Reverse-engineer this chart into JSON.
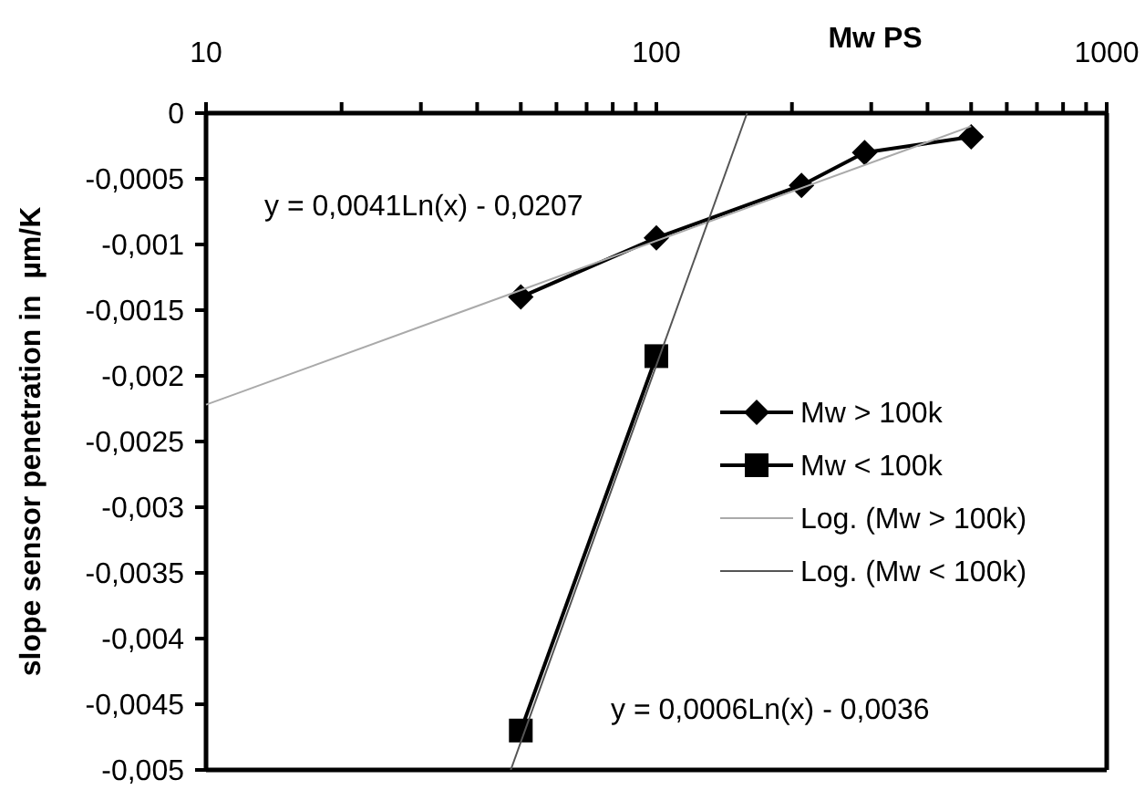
{
  "chart_data": {
    "type": "line",
    "xlabel": "Mw PS",
    "ylabel": "slope sensor penetration in  µm/K",
    "log": "x",
    "grid": false,
    "legend": "right",
    "xlim": [
      10,
      1000
    ],
    "xticks": [
      10,
      {
        "value": 20,
        "label": null
      },
      {
        "value": 30,
        "label": null
      },
      {
        "value": 40,
        "label": null
      },
      {
        "value": 50,
        "label": null
      },
      {
        "value": 60,
        "label": null
      },
      {
        "value": 70,
        "label": null
      },
      {
        "value": 80,
        "label": null
      },
      {
        "value": 90,
        "label": null
      },
      100,
      {
        "value": 200,
        "label": null
      },
      {
        "value": 300,
        "label": null
      },
      {
        "value": 400,
        "label": null
      },
      {
        "value": 500,
        "label": null
      },
      {
        "value": 600,
        "label": null
      },
      {
        "value": 700,
        "label": null
      },
      {
        "value": 800,
        "label": null
      },
      {
        "value": 900,
        "label": null
      },
      1000
    ],
    "ylim": [
      -0.005,
      0
    ],
    "yticks": [
      0,
      {
        "value": -0.0005,
        "label": "-0,0005"
      },
      {
        "value": -0.001,
        "label": "-0,001"
      },
      {
        "value": -0.0015,
        "label": "-0,0015"
      },
      {
        "value": -0.002,
        "label": "-0,002"
      },
      {
        "value": -0.0025,
        "label": "-0,0025"
      },
      {
        "value": -0.003,
        "label": "-0,003"
      },
      {
        "value": -0.0035,
        "label": "-0,0035"
      },
      {
        "value": -0.004,
        "label": "-0,004"
      },
      {
        "value": -0.0045,
        "label": "-0,0045"
      },
      {
        "value": -0.005,
        "label": "-0,005"
      }
    ],
    "series": [
      {
        "name": "Mw > 100k",
        "color": "#000000",
        "marker": "diamond",
        "x": [
          50,
          100,
          210,
          290,
          500
        ],
        "values": [
          -0.0014,
          -0.00095,
          -0.00055,
          -0.0003,
          -0.00018
        ]
      },
      {
        "name": "Mw < 100k",
        "color": "#000000",
        "marker": "square",
        "x": [
          50,
          100
        ],
        "values": [
          -0.0047,
          -0.00185
        ]
      },
      {
        "name": "Log. (Mw > 100k)",
        "color": "#aaaaaa",
        "marker": "none",
        "x": [
          10,
          500
        ],
        "values": [
          -0.00222,
          -0.0001
        ]
      },
      {
        "name": "Log. (Mw < 100k)",
        "color": "#555555",
        "marker": "none",
        "x": [
          47.5,
          159
        ],
        "values": [
          -0.005,
          0
        ]
      }
    ],
    "annotations": [
      "y = 0,0041Ln(x) - 0,0207",
      "y = 0,0006Ln(x) - 0,0036"
    ]
  }
}
